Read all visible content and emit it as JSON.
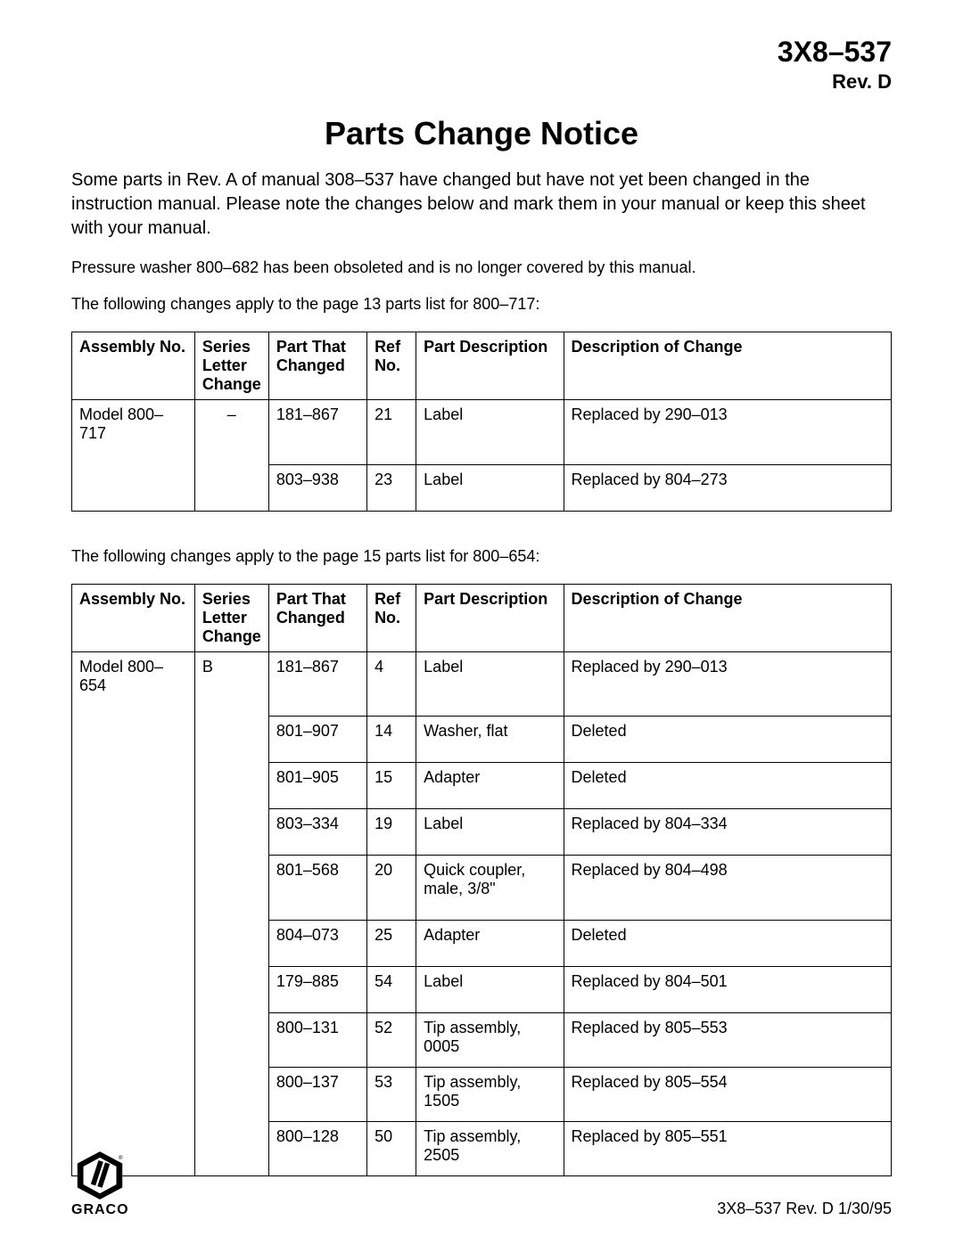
{
  "header": {
    "doc_id": "3X8–537",
    "revision": "Rev. D"
  },
  "title": "Parts Change Notice",
  "intro": "Some parts in Rev. A of manual 308–537 have changed but have not yet been changed in the instruction manual. Please note the changes below and mark them in your manual or keep this sheet with your manual.",
  "obsolete_note": "Pressure washer 800–682 has been obsoleted and is no longer covered by this manual.",
  "table1_caption": "The following changes apply to the page 13 parts list for 800–717:",
  "columns": {
    "assembly": "Assembly No.",
    "series": "Series Letter Change",
    "part": "Part That Changed",
    "ref": "Ref No.",
    "desc": "Part Description",
    "change": "Description of Change"
  },
  "table1": {
    "assembly": "Model 800–717",
    "series": "–",
    "rows": [
      {
        "part": "181–867",
        "ref": "21",
        "desc": "Label",
        "change": "Replaced by 290–013"
      },
      {
        "part": "803–938",
        "ref": "23",
        "desc": "Label",
        "change": "Replaced by 804–273"
      }
    ]
  },
  "table2_caption": "The following changes apply to the page 15 parts list for 800–654:",
  "table2": {
    "assembly": "Model 800–654",
    "series": "B",
    "rows": [
      {
        "part": "181–867",
        "ref": "4",
        "desc": "Label",
        "change": "Replaced by 290–013"
      },
      {
        "part": "801–907",
        "ref": "14",
        "desc": "Washer, flat",
        "change": "Deleted"
      },
      {
        "part": "801–905",
        "ref": "15",
        "desc": "Adapter",
        "change": "Deleted"
      },
      {
        "part": "803–334",
        "ref": "19",
        "desc": "Label",
        "change": "Replaced by 804–334"
      },
      {
        "part": "801–568",
        "ref": "20",
        "desc": "Quick coupler, male, 3/8\"",
        "change": "Replaced by  804–498"
      },
      {
        "part": "804–073",
        "ref": "25",
        "desc": "Adapter",
        "change": "Deleted"
      },
      {
        "part": "179–885",
        "ref": "54",
        "desc": "Label",
        "change": "Replaced by 804–501"
      },
      {
        "part": "800–131",
        "ref": "52",
        "desc": "Tip assembly, 0005",
        "change": "Replaced by 805–553"
      },
      {
        "part": "800–137",
        "ref": "53",
        "desc": "Tip assembly, 1505",
        "change": "Replaced by 805–554"
      },
      {
        "part": "800–128",
        "ref": "50",
        "desc": "Tip assembly, 2505",
        "change": "Replaced by 805–551"
      }
    ]
  },
  "footer": {
    "logo_name": "GRACO",
    "text": "3X8–537 Rev. D    1/30/95"
  },
  "style": {
    "background_color": "#ffffff",
    "text_color": "#000000",
    "border_color": "#000000",
    "title_fontsize": 36,
    "docid_fontsize": 32,
    "body_fontsize": 18
  }
}
